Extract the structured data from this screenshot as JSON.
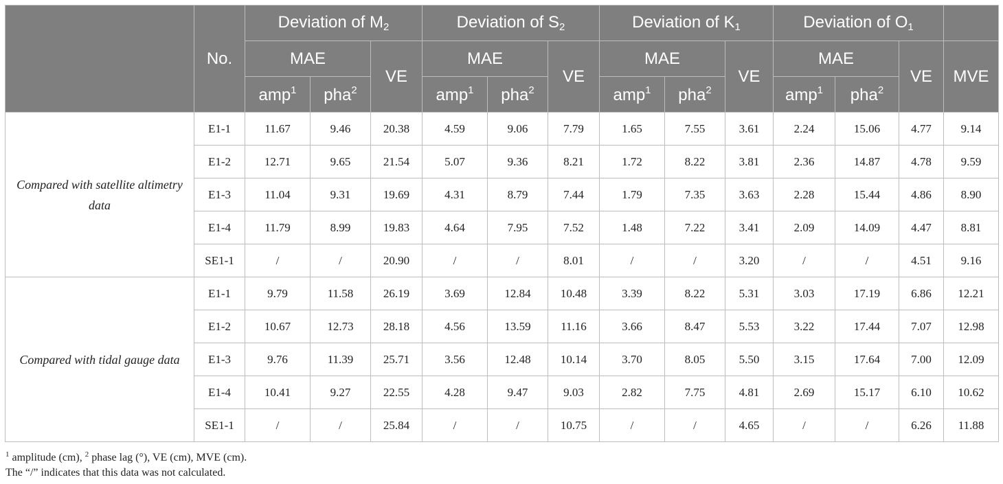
{
  "header": {
    "no_label": "No.",
    "groups": [
      {
        "prefix": "Deviation of ",
        "letter": "M",
        "sub": "2"
      },
      {
        "prefix": "Deviation of ",
        "letter": "S",
        "sub": "2"
      },
      {
        "prefix": "Deviation of ",
        "letter": "K",
        "sub": "1"
      },
      {
        "prefix": "Deviation of ",
        "letter": "O",
        "sub": "1"
      }
    ],
    "mae": "MAE",
    "ve": "VE",
    "mve": "MVE",
    "amp": "amp",
    "amp_sup": "1",
    "pha": "pha",
    "pha_sup": "2"
  },
  "sections": [
    {
      "label": "Compared with satellite altimetry data",
      "rows": [
        [
          "E1-1",
          "11.67",
          "9.46",
          "20.38",
          "4.59",
          "9.06",
          "7.79",
          "1.65",
          "7.55",
          "3.61",
          "2.24",
          "15.06",
          "4.77",
          "9.14"
        ],
        [
          "E1-2",
          "12.71",
          "9.65",
          "21.54",
          "5.07",
          "9.36",
          "8.21",
          "1.72",
          "8.22",
          "3.81",
          "2.36",
          "14.87",
          "4.78",
          "9.59"
        ],
        [
          "E1-3",
          "11.04",
          "9.31",
          "19.69",
          "4.31",
          "8.79",
          "7.44",
          "1.79",
          "7.35",
          "3.63",
          "2.28",
          "15.44",
          "4.86",
          "8.90"
        ],
        [
          "E1-4",
          "11.79",
          "8.99",
          "19.83",
          "4.64",
          "7.95",
          "7.52",
          "1.48",
          "7.22",
          "3.41",
          "2.09",
          "14.09",
          "4.47",
          "8.81"
        ],
        [
          "SE1-1",
          "/",
          "/",
          "20.90",
          "/",
          "/",
          "8.01",
          "/",
          "/",
          "3.20",
          "/",
          "/",
          "4.51",
          "9.16"
        ]
      ]
    },
    {
      "label": "Compared with tidal gauge data",
      "rows": [
        [
          "E1-1",
          "9.79",
          "11.58",
          "26.19",
          "3.69",
          "12.84",
          "10.48",
          "3.39",
          "8.22",
          "5.31",
          "3.03",
          "17.19",
          "6.86",
          "12.21"
        ],
        [
          "E1-2",
          "10.67",
          "12.73",
          "28.18",
          "4.56",
          "13.59",
          "11.16",
          "3.66",
          "8.47",
          "5.53",
          "3.22",
          "17.44",
          "7.07",
          "12.98"
        ],
        [
          "E1-3",
          "9.76",
          "11.39",
          "25.71",
          "3.56",
          "12.48",
          "10.14",
          "3.70",
          "8.05",
          "5.50",
          "3.15",
          "17.64",
          "7.00",
          "12.09"
        ],
        [
          "E1-4",
          "10.41",
          "9.27",
          "22.55",
          "4.28",
          "9.47",
          "9.03",
          "2.82",
          "7.75",
          "4.81",
          "2.69",
          "15.17",
          "6.10",
          "10.62"
        ],
        [
          "SE1-1",
          "/",
          "/",
          "25.84",
          "/",
          "/",
          "10.75",
          "/",
          "/",
          "4.65",
          "/",
          "/",
          "6.26",
          "11.88"
        ]
      ]
    }
  ],
  "footnotes": {
    "sup1": "1",
    "text1a": " amplitude (cm), ",
    "sup2": "2",
    "text1b": " phase lag (°), VE (cm), MVE (cm).",
    "line2": "The “/” indicates that this data was not calculated."
  }
}
